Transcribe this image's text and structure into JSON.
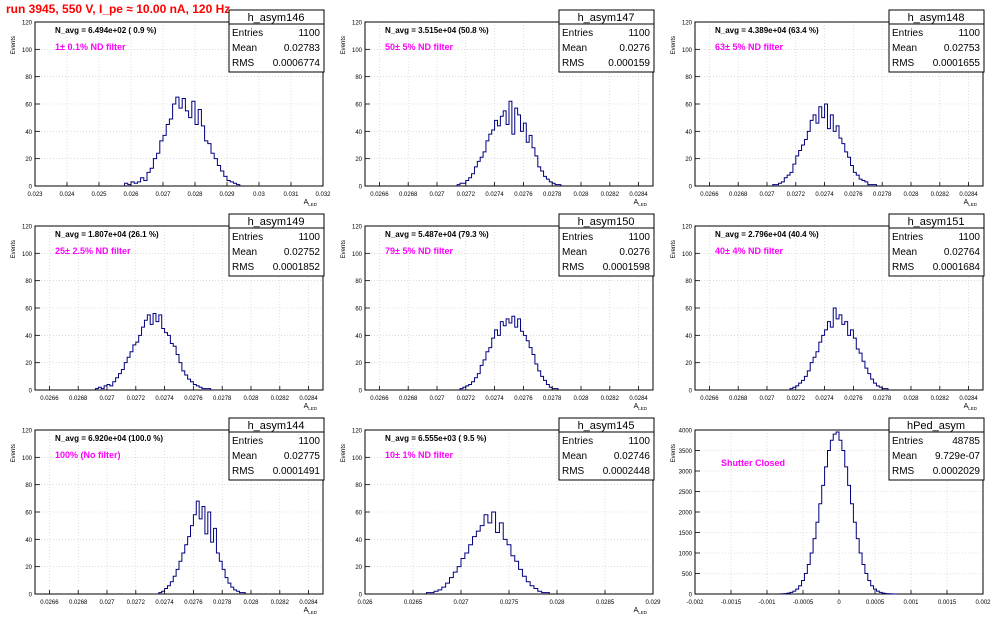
{
  "page": {
    "title": "run 3945,   550 V, I_pe ≈ 10.00 nA, 120 Hz"
  },
  "colors": {
    "histogram": "#000080",
    "title_text": "#ff0000",
    "filter_text": "#ff00ff",
    "grid": "#c8c8c8"
  },
  "chart_data": [
    {
      "type": "histogram",
      "name": "h_asym146",
      "n_avg": "N_avg = 6.494e+02 ( 0.9 %)",
      "filter": "1± 0.1% ND filter",
      "stats": {
        "entries_label": "Entries",
        "entries": "1100",
        "mean_label": "Mean",
        "mean": "0.02783",
        "rms_label": "RMS",
        "rms": "0.0006774"
      },
      "xlabel": "A_LED",
      "ylabel": "Events",
      "xlim": [
        0.023,
        0.032
      ],
      "ylim": [
        0,
        120
      ],
      "xticks": [
        0.023,
        0.024,
        0.025,
        0.026,
        0.027,
        0.028,
        0.029,
        0.03,
        0.031,
        0.032
      ],
      "xticklabels": [
        "0.023",
        "0.024",
        "0.025",
        "0.026",
        "0.027",
        "0.028",
        "0.029",
        "0.03",
        "0.031",
        "0.032"
      ],
      "yticks": [
        0,
        20,
        40,
        60,
        80,
        100,
        120
      ],
      "bins": {
        "start": 0.0258,
        "width": 0.0001,
        "counts": [
          2,
          1,
          3,
          2,
          3,
          6,
          4,
          10,
          13,
          20,
          24,
          33,
          37,
          45,
          49,
          60,
          65,
          57,
          64,
          55,
          50,
          62,
          45,
          56,
          44,
          33,
          31,
          24,
          20,
          15,
          11,
          7,
          4,
          3,
          2,
          1
        ]
      }
    },
    {
      "type": "histogram",
      "name": "h_asym147",
      "n_avg": "N_avg = 3.515e+04 (50.8 %)",
      "filter": "50± 5% ND filter",
      "stats": {
        "entries_label": "Entries",
        "entries": "1100",
        "mean_label": "Mean",
        "mean": "0.0276",
        "rms_label": "RMS",
        "rms": "0.000159"
      },
      "xlabel": "A_LED",
      "ylabel": "Events",
      "xlim": [
        0.0265,
        0.0285
      ],
      "ylim": [
        0,
        120
      ],
      "xticks": [
        0.0266,
        0.0268,
        0.027,
        0.0272,
        0.0274,
        0.0276,
        0.0278,
        0.028,
        0.0282,
        0.0284
      ],
      "xticklabels": [
        "0.0266",
        "0.0268",
        "0.027",
        "0.0272",
        "0.0274",
        "0.0276",
        "0.0278",
        "0.028",
        "0.0282",
        "0.0284"
      ],
      "yticks": [
        0,
        20,
        40,
        60,
        80,
        100,
        120
      ],
      "bins": {
        "start": 0.02714,
        "width": 2e-05,
        "counts": [
          1,
          2,
          2,
          4,
          6,
          9,
          14,
          18,
          21,
          25,
          33,
          38,
          41,
          48,
          44,
          51,
          55,
          45,
          62,
          38,
          57,
          52,
          40,
          46,
          32,
          37,
          28,
          22,
          14,
          11,
          7,
          5,
          3,
          2,
          1,
          1
        ]
      }
    },
    {
      "type": "histogram",
      "name": "h_asym148",
      "n_avg": "N_avg = 4.389e+04 (63.4 %)",
      "filter": "63± 5% ND filter",
      "stats": {
        "entries_label": "Entries",
        "entries": "1100",
        "mean_label": "Mean",
        "mean": "0.02753",
        "rms_label": "RMS",
        "rms": "0.0001655"
      },
      "xlabel": "A_LED",
      "ylabel": "Events",
      "xlim": [
        0.0265,
        0.0285
      ],
      "ylim": [
        0,
        120
      ],
      "xticks": [
        0.0266,
        0.0268,
        0.027,
        0.0272,
        0.0274,
        0.0276,
        0.0278,
        0.028,
        0.0282,
        0.0284
      ],
      "xticklabels": [
        "0.0266",
        "0.0268",
        "0.027",
        "0.0272",
        "0.0274",
        "0.0276",
        "0.0278",
        "0.028",
        "0.0282",
        "0.0284"
      ],
      "yticks": [
        0,
        20,
        40,
        60,
        80,
        100,
        120
      ],
      "bins": {
        "start": 0.02704,
        "width": 2e-05,
        "counts": [
          1,
          1,
          2,
          3,
          6,
          8,
          10,
          16,
          22,
          26,
          30,
          34,
          40,
          48,
          52,
          46,
          58,
          50,
          60,
          42,
          52,
          40,
          44,
          35,
          31,
          25,
          21,
          15,
          10,
          8,
          5,
          4,
          3,
          1,
          1,
          1
        ]
      }
    },
    {
      "type": "histogram",
      "name": "h_asym149",
      "n_avg": "N_avg = 1.807e+04 (26.1 %)",
      "filter": "25± 2.5% ND filter",
      "stats": {
        "entries_label": "Entries",
        "entries": "1100",
        "mean_label": "Mean",
        "mean": "0.02752",
        "rms_label": "RMS",
        "rms": "0.0001852"
      },
      "xlabel": "A_LED",
      "ylabel": "Events",
      "xlim": [
        0.0265,
        0.0285
      ],
      "ylim": [
        0,
        120
      ],
      "xticks": [
        0.0266,
        0.0268,
        0.027,
        0.0272,
        0.0274,
        0.0276,
        0.0278,
        0.028,
        0.0282,
        0.0284
      ],
      "xticklabels": [
        "0.0266",
        "0.0268",
        "0.027",
        "0.0272",
        "0.0274",
        "0.0276",
        "0.0278",
        "0.028",
        "0.0282",
        "0.0284"
      ],
      "yticks": [
        0,
        20,
        40,
        60,
        80,
        100,
        120
      ],
      "bins": {
        "start": 0.02692,
        "width": 2e-05,
        "counts": [
          1,
          2,
          1,
          3,
          4,
          3,
          6,
          9,
          12,
          15,
          20,
          24,
          28,
          33,
          35,
          40,
          46,
          51,
          55,
          48,
          56,
          50,
          55,
          45,
          42,
          40,
          34,
          32,
          26,
          20,
          14,
          11,
          8,
          6,
          4,
          3,
          2,
          1,
          1,
          1
        ]
      }
    },
    {
      "type": "histogram",
      "name": "h_asym150",
      "n_avg": "N_avg = 5.487e+04 (79.3 %)",
      "filter": "79± 5% ND filter",
      "stats": {
        "entries_label": "Entries",
        "entries": "1100",
        "mean_label": "Mean",
        "mean": "0.0276",
        "rms_label": "RMS",
        "rms": "0.0001598"
      },
      "xlabel": "A_LED",
      "ylabel": "Events",
      "xlim": [
        0.0265,
        0.0285
      ],
      "ylim": [
        0,
        120
      ],
      "xticks": [
        0.0266,
        0.0268,
        0.027,
        0.0272,
        0.0274,
        0.0276,
        0.0278,
        0.028,
        0.0282,
        0.0284
      ],
      "xticklabels": [
        "0.0266",
        "0.0268",
        "0.027",
        "0.0272",
        "0.0274",
        "0.0276",
        "0.0278",
        "0.028",
        "0.0282",
        "0.0284"
      ],
      "yticks": [
        0,
        20,
        40,
        60,
        80,
        100,
        120
      ],
      "bins": {
        "start": 0.02716,
        "width": 2e-05,
        "counts": [
          1,
          2,
          3,
          4,
          6,
          9,
          12,
          18,
          22,
          28,
          31,
          38,
          44,
          40,
          50,
          47,
          52,
          49,
          54,
          46,
          52,
          43,
          40,
          36,
          31,
          26,
          19,
          14,
          10,
          7,
          4,
          2,
          1,
          1
        ]
      }
    },
    {
      "type": "histogram",
      "name": "h_asym151",
      "n_avg": "N_avg = 2.796e+04 (40.4 %)",
      "filter": "40± 4% ND filter",
      "stats": {
        "entries_label": "Entries",
        "entries": "1100",
        "mean_label": "Mean",
        "mean": "0.02764",
        "rms_label": "RMS",
        "rms": "0.0001684"
      },
      "xlabel": "A_LED",
      "ylabel": "Events",
      "xlim": [
        0.0265,
        0.0285
      ],
      "ylim": [
        0,
        120
      ],
      "xticks": [
        0.0266,
        0.0268,
        0.027,
        0.0272,
        0.0274,
        0.0276,
        0.0278,
        0.028,
        0.0282,
        0.0284
      ],
      "xticklabels": [
        "0.0266",
        "0.0268",
        "0.027",
        "0.0272",
        "0.0274",
        "0.0276",
        "0.0278",
        "0.028",
        "0.0282",
        "0.0284"
      ],
      "yticks": [
        0,
        20,
        40,
        60,
        80,
        100,
        120
      ],
      "bins": {
        "start": 0.02716,
        "width": 2e-05,
        "counts": [
          1,
          2,
          3,
          5,
          7,
          10,
          14,
          20,
          24,
          28,
          35,
          40,
          44,
          50,
          46,
          60,
          52,
          55,
          48,
          50,
          40,
          44,
          38,
          30,
          27,
          21,
          16,
          12,
          8,
          5,
          3,
          2,
          1,
          1
        ]
      }
    },
    {
      "type": "histogram",
      "name": "h_asym144",
      "n_avg": "N_avg = 6.920e+04 (100.0 %)",
      "filter": "100% (No filter)",
      "stats": {
        "entries_label": "Entries",
        "entries": "1100",
        "mean_label": "Mean",
        "mean": "0.02775",
        "rms_label": "RMS",
        "rms": "0.0001491"
      },
      "xlabel": "A_LED",
      "ylabel": "Events",
      "xlim": [
        0.0265,
        0.0285
      ],
      "ylim": [
        0,
        120
      ],
      "xticks": [
        0.0266,
        0.0268,
        0.027,
        0.0272,
        0.0274,
        0.0276,
        0.0278,
        0.028,
        0.0282,
        0.0284
      ],
      "xticklabels": [
        "0.0266",
        "0.0268",
        "0.027",
        "0.0272",
        "0.0274",
        "0.0276",
        "0.0278",
        "0.028",
        "0.0282",
        "0.0284"
      ],
      "yticks": [
        0,
        20,
        40,
        60,
        80,
        100,
        120
      ],
      "bins": {
        "start": 0.02736,
        "width": 2e-05,
        "counts": [
          1,
          2,
          4,
          6,
          9,
          13,
          18,
          24,
          30,
          36,
          42,
          50,
          58,
          68,
          55,
          64,
          44,
          60,
          38,
          48,
          30,
          24,
          18,
          12,
          8,
          5,
          3,
          2,
          1,
          1
        ]
      }
    },
    {
      "type": "histogram",
      "name": "h_asym145",
      "n_avg": "N_avg = 6.555e+03 ( 9.5 %)",
      "filter": "10± 1% ND filter",
      "stats": {
        "entries_label": "Entries",
        "entries": "1100",
        "mean_label": "Mean",
        "mean": "0.02746",
        "rms_label": "RMS",
        "rms": "0.0002448"
      },
      "xlabel": "A_LED",
      "ylabel": "Events",
      "xlim": [
        0.026,
        0.029
      ],
      "ylim": [
        0,
        120
      ],
      "xticks": [
        0.026,
        0.0265,
        0.027,
        0.0275,
        0.028,
        0.0285,
        0.029
      ],
      "xticklabels": [
        "0.026",
        "0.0265",
        "0.027",
        "0.0275",
        "0.028",
        "0.0285",
        "0.029"
      ],
      "yticks": [
        0,
        20,
        40,
        60,
        80,
        100,
        120
      ],
      "bins": {
        "start": 0.02664,
        "width": 4e-05,
        "counts": [
          1,
          1,
          2,
          3,
          5,
          8,
          12,
          16,
          20,
          26,
          30,
          36,
          42,
          46,
          50,
          58,
          52,
          60,
          45,
          52,
          40,
          36,
          28,
          24,
          18,
          13,
          9,
          6,
          4,
          2,
          1,
          1
        ]
      }
    },
    {
      "type": "histogram",
      "name": "hPed_asym",
      "n_avg": "",
      "filter": "Shutter Closed",
      "stats": {
        "entries_label": "Entries",
        "entries": "48785",
        "mean_label": "Mean",
        "mean": "9.729e-07",
        "rms_label": "RMS",
        "rms": "0.0002029"
      },
      "xlabel": "",
      "ylabel": "Events",
      "xlim": [
        -0.002,
        0.002
      ],
      "ylim": [
        0,
        4000
      ],
      "xticks": [
        -0.002,
        -0.0015,
        -0.001,
        -0.0005,
        0,
        0.0005,
        0.001,
        0.0015,
        0.002
      ],
      "xticklabels": [
        "-0.002",
        "-0.0015",
        "-0.001",
        "-0.0005",
        "0",
        "0.0005",
        "0.001",
        "0.0015",
        "0.002"
      ],
      "yticks": [
        0,
        500,
        1000,
        1500,
        2000,
        2500,
        3000,
        3500,
        4000
      ],
      "bins": {
        "start": -0.0008,
        "width": 4e-05,
        "counts": [
          5,
          10,
          20,
          40,
          70,
          120,
          200,
          330,
          500,
          720,
          1000,
          1350,
          1750,
          2200,
          2650,
          3100,
          3500,
          3750,
          3900,
          3950,
          3750,
          3500,
          3100,
          2650,
          2200,
          1750,
          1350,
          1000,
          720,
          500,
          330,
          200,
          120,
          70,
          40,
          20,
          10,
          5,
          2,
          1
        ]
      }
    }
  ]
}
